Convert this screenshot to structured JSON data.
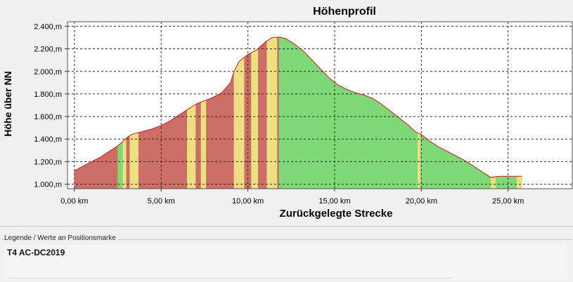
{
  "chart_data": {
    "type": "area",
    "title": "Höhenprofil",
    "xlabel": "Zurückgelegte Strecke",
    "ylabel": "Höhe über NN",
    "xlim": [
      -0.4,
      28.7
    ],
    "ylim": [
      960,
      2440
    ],
    "x_ticks": [
      0,
      5,
      10,
      15,
      20,
      25
    ],
    "x_tick_labels": [
      "0,00 km",
      "5,00 km",
      "10,00 km",
      "15,00 km",
      "20,00 km",
      "25,00 km"
    ],
    "y_ticks": [
      1000,
      1200,
      1400,
      1600,
      1800,
      2000,
      2200,
      2400
    ],
    "y_tick_labels": [
      "1.000,m",
      "1.200,m",
      "1.400,m",
      "1.600,m",
      "1.800,m",
      "2.000,m",
      "2.200,m",
      "2.400,m"
    ],
    "grid": true,
    "units": {
      "x": "km",
      "y": "m"
    },
    "x": [
      0.0,
      0.5,
      1.0,
      1.5,
      2.0,
      2.5,
      2.8,
      3.0,
      3.3,
      3.5,
      4.0,
      4.5,
      5.0,
      5.5,
      6.0,
      6.5,
      7.0,
      7.5,
      8.0,
      8.5,
      9.0,
      9.2,
      9.5,
      10.0,
      10.5,
      11.0,
      11.4,
      11.8,
      12.2,
      12.7,
      13.2,
      13.7,
      14.2,
      14.7,
      15.2,
      15.7,
      16.2,
      16.7,
      17.2,
      17.7,
      18.2,
      18.7,
      19.2,
      19.7,
      20.0,
      20.5,
      21.0,
      21.5,
      22.0,
      22.5,
      23.0,
      23.5,
      24.0,
      24.5,
      25.0,
      25.8
    ],
    "elevation": [
      1120,
      1160,
      1200,
      1240,
      1290,
      1340,
      1380,
      1410,
      1440,
      1450,
      1470,
      1490,
      1520,
      1560,
      1610,
      1660,
      1710,
      1740,
      1770,
      1810,
      1900,
      2000,
      2090,
      2150,
      2190,
      2260,
      2300,
      2305,
      2290,
      2240,
      2180,
      2100,
      2020,
      1940,
      1880,
      1840,
      1810,
      1790,
      1760,
      1710,
      1650,
      1590,
      1530,
      1460,
      1440,
      1380,
      1330,
      1290,
      1250,
      1210,
      1160,
      1110,
      1060,
      1070,
      1070,
      1070
    ],
    "segments": [
      {
        "from": 0.0,
        "to": 2.5,
        "color": "red"
      },
      {
        "from": 2.5,
        "to": 2.8,
        "color": "green"
      },
      {
        "from": 2.8,
        "to": 3.0,
        "color": "yellow"
      },
      {
        "from": 3.0,
        "to": 3.2,
        "color": "red"
      },
      {
        "from": 3.2,
        "to": 3.7,
        "color": "yellow"
      },
      {
        "from": 3.7,
        "to": 6.5,
        "color": "red"
      },
      {
        "from": 6.5,
        "to": 7.0,
        "color": "yellow"
      },
      {
        "from": 7.0,
        "to": 7.3,
        "color": "red"
      },
      {
        "from": 7.3,
        "to": 7.6,
        "color": "yellow"
      },
      {
        "from": 7.6,
        "to": 9.2,
        "color": "red"
      },
      {
        "from": 9.2,
        "to": 9.8,
        "color": "yellow"
      },
      {
        "from": 9.8,
        "to": 10.2,
        "color": "red"
      },
      {
        "from": 10.2,
        "to": 10.6,
        "color": "yellow"
      },
      {
        "from": 10.6,
        "to": 11.1,
        "color": "red"
      },
      {
        "from": 11.1,
        "to": 11.7,
        "color": "yellow"
      },
      {
        "from": 11.7,
        "to": 11.8,
        "color": "red"
      },
      {
        "from": 11.8,
        "to": 19.8,
        "color": "green"
      },
      {
        "from": 19.8,
        "to": 19.95,
        "color": "yellow"
      },
      {
        "from": 19.95,
        "to": 24.0,
        "color": "green"
      },
      {
        "from": 24.0,
        "to": 24.3,
        "color": "yellow"
      },
      {
        "from": 24.3,
        "to": 25.5,
        "color": "green"
      },
      {
        "from": 25.5,
        "to": 25.8,
        "color": "yellow"
      }
    ],
    "colors": {
      "red": "#cc6d66",
      "yellow": "#ece080",
      "green": "#7fd876",
      "outline": "#cc1a1a",
      "plot_bg": "#ffffff",
      "grid": "#2a2a2a"
    }
  },
  "legend": {
    "caption": "Legende / Werte an Positionsmarke",
    "entry": "T4 AC-DC2019"
  }
}
